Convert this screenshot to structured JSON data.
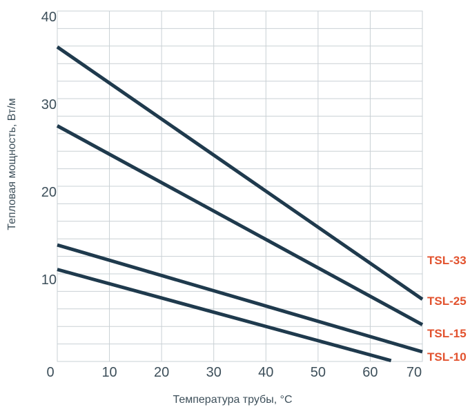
{
  "chart_data": {
    "type": "line",
    "title": "",
    "xlabel": "Температура трубы, °C",
    "ylabel": "Тепловая мощность, Вт/м",
    "xlim": [
      0,
      70
    ],
    "ylim": [
      0,
      40
    ],
    "x_ticks": [
      "0",
      "10",
      "20",
      "30",
      "40",
      "50",
      "60",
      "70"
    ],
    "y_ticks": [
      "10",
      "20",
      "30",
      "40"
    ],
    "grid": true,
    "legend": "right-end-labels",
    "line_color": "#1f3a4d",
    "label_color": "#e2522e",
    "series": [
      {
        "name": "TSL-33",
        "x": [
          0,
          70
        ],
        "y": [
          35.9,
          7.1
        ]
      },
      {
        "name": "TSL-25",
        "x": [
          0,
          70
        ],
        "y": [
          26.9,
          4.2
        ]
      },
      {
        "name": "TSL-15",
        "x": [
          0,
          70
        ],
        "y": [
          13.3,
          1.1
        ]
      },
      {
        "name": "TSL-10",
        "x": [
          0,
          64
        ],
        "y": [
          10.5,
          0.1
        ]
      }
    ]
  }
}
